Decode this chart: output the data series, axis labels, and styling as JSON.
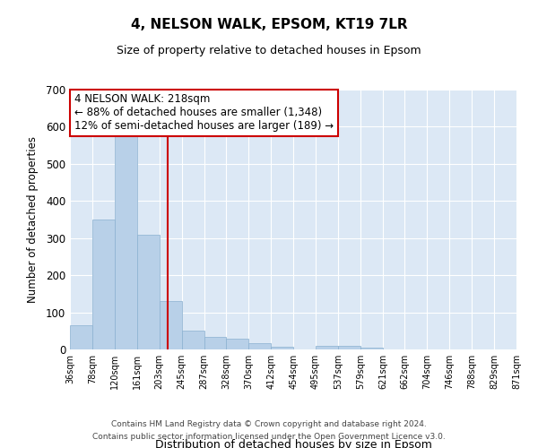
{
  "title_line1": "4, NELSON WALK, EPSOM, KT19 7LR",
  "title_line2": "Size of property relative to detached houses in Epsom",
  "xlabel": "Distribution of detached houses by size in Epsom",
  "ylabel": "Number of detached properties",
  "bar_color": "#b8d0e8",
  "bar_edge_color": "#8ab0d0",
  "background_color": "#dce8f5",
  "grid_color": "#ffffff",
  "annotation_box_color": "#ffffff",
  "annotation_border_color": "#cc0000",
  "vline_color": "#cc0000",
  "property_size": 218,
  "bin_edges": [
    36,
    78,
    120,
    161,
    203,
    245,
    287,
    328,
    370,
    412,
    454,
    495,
    537,
    579,
    621,
    662,
    704,
    746,
    788,
    829,
    871
  ],
  "bar_heights": [
    65,
    350,
    575,
    310,
    130,
    50,
    35,
    28,
    17,
    8,
    0,
    10,
    10,
    5,
    0,
    0,
    0,
    0,
    0,
    0
  ],
  "ylim": [
    0,
    700
  ],
  "yticks": [
    0,
    100,
    200,
    300,
    400,
    500,
    600,
    700
  ],
  "annotation_text": "4 NELSON WALK: 218sqm\n← 88% of detached houses are smaller (1,348)\n12% of semi-detached houses are larger (189) →",
  "footer_line1": "Contains HM Land Registry data © Crown copyright and database right 2024.",
  "footer_line2": "Contains public sector information licensed under the Open Government Licence v3.0."
}
